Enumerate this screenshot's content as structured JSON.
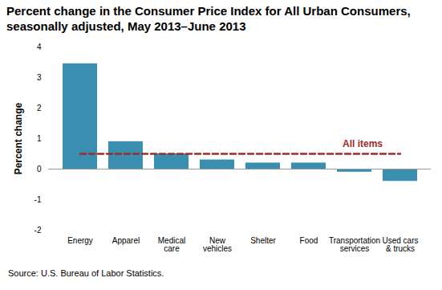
{
  "chart_data": {
    "type": "bar",
    "title": "Percent change in the Consumer Price Index for All Urban Consumers, seasonally adjusted, May 2013–June 2013",
    "y_label": "Percent change",
    "caption": "Source: U.S. Bureau of Labor Statistics.",
    "categories": [
      "Energy",
      "Apparel",
      "Medical\ncare",
      "New\nvehicles",
      "Shelter",
      "Food",
      "Transportation\nservices",
      "Used cars\n& trucks"
    ],
    "values": [
      3.45,
      0.9,
      0.5,
      0.3,
      0.2,
      0.2,
      -0.1,
      -0.4
    ],
    "color": "#3a8fb0",
    "ylim": [
      -2,
      4
    ],
    "yticks": [
      -2,
      -1,
      0,
      1,
      2,
      3,
      4
    ],
    "grid": false,
    "reference_line": {
      "label": "All items",
      "value": 0.5,
      "color": "#9b2d2b",
      "line_style": "dashed"
    }
  }
}
